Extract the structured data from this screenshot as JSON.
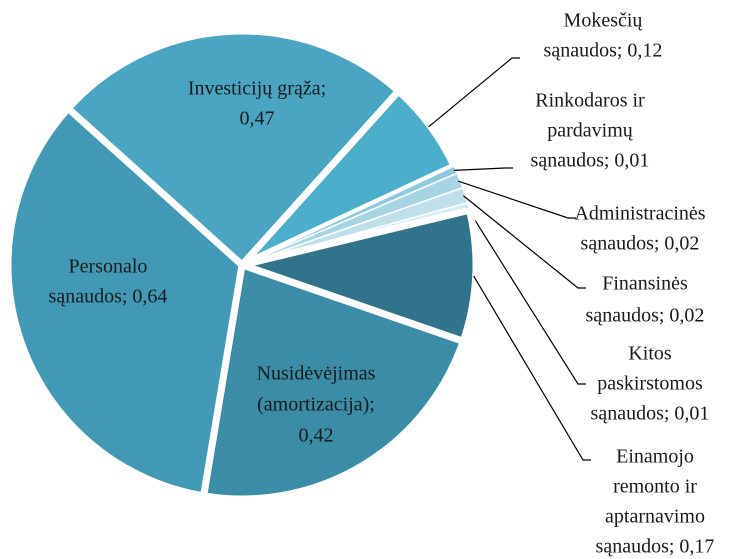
{
  "chart_data": {
    "type": "pie",
    "labels": [
      [
        "Investicijų grąža;",
        "0,47"
      ],
      [
        "Mokesčių",
        "sąnaudos; 0,12"
      ],
      [
        "Rinkodaros ir",
        "pardavimų",
        "sąnaudos; 0,01"
      ],
      [
        "Administracinės",
        "sąnaudos; 0,02"
      ],
      [
        "Finansinės",
        "sąnaudos; 0,02"
      ],
      [
        "Kitos",
        "paskirstomos",
        "sąnaudos; 0,01"
      ],
      [
        "Einamojo",
        "remonto ir",
        "aptarnavimo",
        "sąnaudos; 0,17"
      ],
      [
        "Nusidėvėjimas",
        "(amortizacija);",
        "0,42"
      ],
      [
        "Personalo",
        "sąnaudos; 0,64"
      ]
    ],
    "values": [
      0.47,
      0.12,
      0.01,
      0.02,
      0.02,
      0.01,
      0.17,
      0.42,
      0.64
    ],
    "colors": [
      "#4aa5c2",
      "#4bafcb",
      "#8ecadb",
      "#a6d4e2",
      "#bfe0ea",
      "#d6ebf2",
      "#31738b",
      "#3b8ca6",
      "#4299b6"
    ]
  }
}
